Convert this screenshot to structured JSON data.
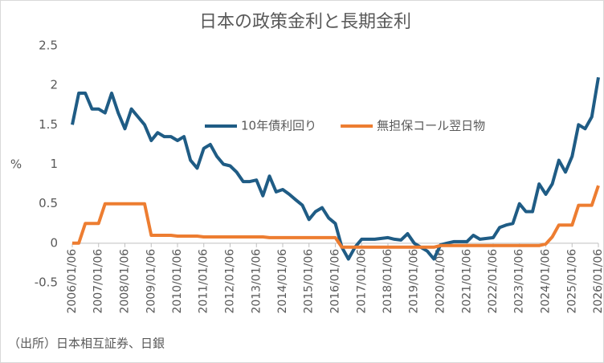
{
  "chart_data": {
    "type": "line",
    "title": "日本の政策金利と長期金利",
    "y_label": "%",
    "source": "（出所）日本相互証券、日銀",
    "x": [
      "2006/01/06",
      "2006/04/06",
      "2006/07/06",
      "2006/10/06",
      "2007/01/06",
      "2007/04/06",
      "2007/07/06",
      "2007/10/06",
      "2008/01/06",
      "2008/04/06",
      "2008/07/06",
      "2008/10/06",
      "2009/01/06",
      "2009/04/06",
      "2009/07/06",
      "2009/10/06",
      "2010/01/06",
      "2010/04/06",
      "2010/07/06",
      "2010/10/06",
      "2011/01/06",
      "2011/04/06",
      "2011/07/06",
      "2011/10/06",
      "2012/01/06",
      "2012/04/06",
      "2012/07/06",
      "2012/10/06",
      "2013/01/06",
      "2013/04/06",
      "2013/07/06",
      "2013/10/06",
      "2014/01/06",
      "2014/04/06",
      "2014/07/06",
      "2014/10/06",
      "2015/01/06",
      "2015/04/06",
      "2015/07/06",
      "2015/10/06",
      "2016/01/06",
      "2016/04/06",
      "2016/07/06",
      "2016/10/06",
      "2017/01/06",
      "2017/04/06",
      "2017/07/06",
      "2017/10/06",
      "2018/01/06",
      "2018/04/06",
      "2018/07/06",
      "2018/10/06",
      "2019/01/06",
      "2019/04/06",
      "2019/07/06",
      "2019/10/06",
      "2020/01/06",
      "2020/04/06",
      "2020/07/06",
      "2020/10/06",
      "2021/01/06",
      "2021/04/06",
      "2021/07/06",
      "2021/10/06",
      "2022/01/06",
      "2022/04/06",
      "2022/07/06",
      "2022/10/06",
      "2023/01/06",
      "2023/04/06",
      "2023/07/06",
      "2023/10/06",
      "2024/01/06",
      "2024/04/06",
      "2024/07/06",
      "2024/10/06",
      "2025/01/06",
      "2025/04/06",
      "2025/07/06",
      "2025/10/06",
      "2026/01/06"
    ],
    "series": [
      {
        "name": "10年債利回り",
        "color": "#1f5c85",
        "values": [
          1.5,
          1.9,
          1.9,
          1.7,
          1.7,
          1.65,
          1.9,
          1.65,
          1.45,
          1.7,
          1.6,
          1.5,
          1.3,
          1.4,
          1.35,
          1.35,
          1.3,
          1.35,
          1.05,
          0.95,
          1.2,
          1.25,
          1.1,
          1.0,
          0.98,
          0.9,
          0.78,
          0.78,
          0.8,
          0.6,
          0.85,
          0.65,
          0.68,
          0.62,
          0.55,
          0.48,
          0.3,
          0.4,
          0.45,
          0.32,
          0.25,
          -0.05,
          -0.2,
          -0.05,
          0.05,
          0.05,
          0.05,
          0.06,
          0.07,
          0.05,
          0.04,
          0.12,
          0.0,
          -0.05,
          -0.1,
          -0.2,
          -0.02,
          0.0,
          0.02,
          0.02,
          0.02,
          0.1,
          0.05,
          0.06,
          0.07,
          0.2,
          0.23,
          0.25,
          0.5,
          0.4,
          0.4,
          0.75,
          0.62,
          0.75,
          1.05,
          0.9,
          1.1,
          1.5,
          1.45,
          1.6,
          2.1
        ]
      },
      {
        "name": "無担保コール翌日物",
        "color": "#ed7d31",
        "values": [
          0.0,
          0.0,
          0.25,
          0.25,
          0.25,
          0.5,
          0.5,
          0.5,
          0.5,
          0.5,
          0.5,
          0.5,
          0.1,
          0.1,
          0.1,
          0.1,
          0.09,
          0.09,
          0.09,
          0.09,
          0.08,
          0.08,
          0.08,
          0.08,
          0.08,
          0.08,
          0.08,
          0.08,
          0.08,
          0.08,
          0.07,
          0.07,
          0.07,
          0.07,
          0.07,
          0.07,
          0.07,
          0.07,
          0.07,
          0.07,
          0.07,
          -0.05,
          -0.05,
          -0.05,
          -0.05,
          -0.05,
          -0.05,
          -0.05,
          -0.05,
          -0.05,
          -0.05,
          -0.05,
          -0.05,
          -0.05,
          -0.05,
          -0.05,
          -0.03,
          -0.03,
          -0.03,
          -0.03,
          -0.03,
          -0.03,
          -0.03,
          -0.03,
          -0.03,
          -0.03,
          -0.03,
          -0.03,
          -0.03,
          -0.03,
          -0.03,
          -0.03,
          -0.01,
          0.08,
          0.23,
          0.23,
          0.23,
          0.48,
          0.48,
          0.48,
          0.73
        ]
      }
    ],
    "xticks": [
      "2006/01/06",
      "2007/01/06",
      "2008/01/06",
      "2009/01/06",
      "2010/01/06",
      "2011/01/06",
      "2012/01/06",
      "2013/01/06",
      "2014/01/06",
      "2015/01/06",
      "2016/01/06",
      "2017/01/06",
      "2018/01/06",
      "2019/01/06",
      "2020/01/06",
      "2021/01/06",
      "2022/01/06",
      "2023/01/06",
      "2024/01/06",
      "2025/01/06",
      "2026/01/06"
    ],
    "ylim": [
      -0.5,
      2.5
    ],
    "yticks": [
      2.5,
      2,
      1.5,
      1,
      0.5,
      0,
      -0.5
    ],
    "grid": false,
    "legend": "center"
  }
}
